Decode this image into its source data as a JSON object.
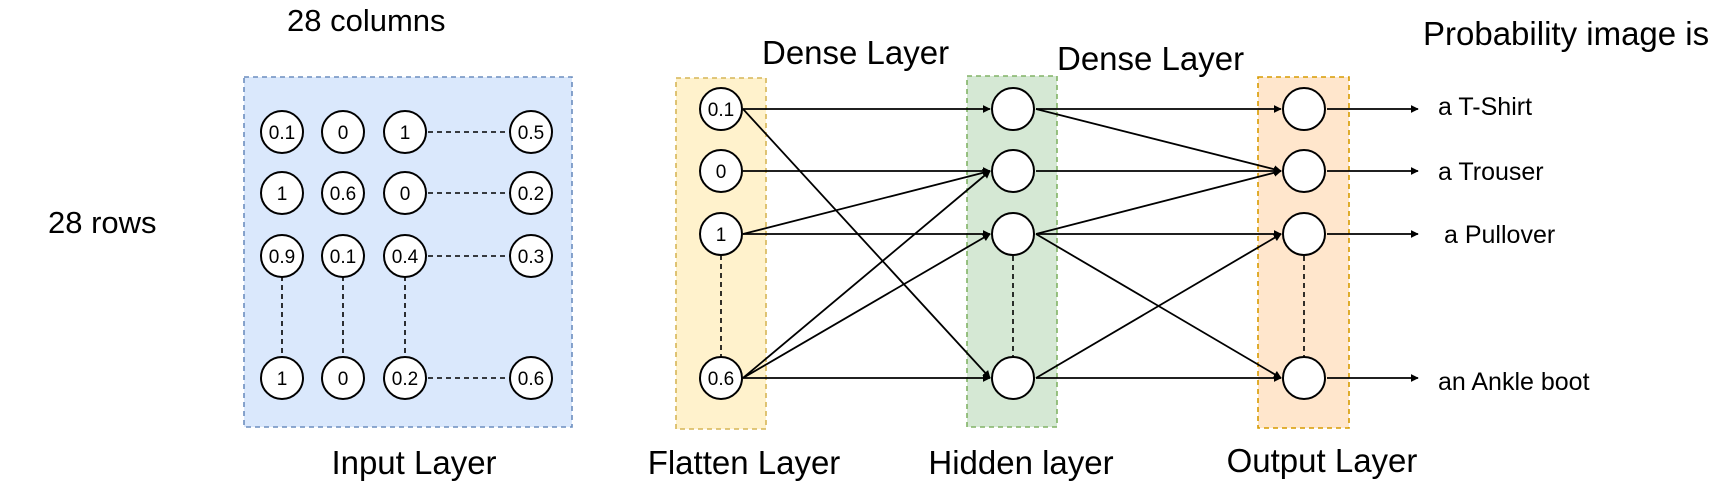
{
  "colors": {
    "input_fill": "#dae8fc",
    "input_border": "#6c8ebf",
    "flatten_fill": "#fff2cc",
    "flatten_border": "#d6b656",
    "hidden_fill": "#d5e8d4",
    "hidden_border": "#82b366",
    "output_fill": "#ffe6cc",
    "output_border": "#d79b00"
  },
  "labels": {
    "columns": "28 columns",
    "rows": "28 rows",
    "dense_layer_1": "Dense Layer",
    "dense_layer_2": "Dense Layer",
    "probability": "Probability image is"
  },
  "captions": {
    "input": "Input Layer",
    "flatten": "Flatten Layer",
    "hidden": "Hidden layer",
    "output": "Output Layer"
  },
  "input_grid": {
    "rows": [
      [
        "0.1",
        "0",
        "1",
        "0.5"
      ],
      [
        "1",
        "0.6",
        "0",
        "0.2"
      ],
      [
        "0.9",
        "0.1",
        "0.4",
        "0.3"
      ],
      [
        "1",
        "0",
        "0.2",
        "0.6"
      ]
    ]
  },
  "flatten_nodes": [
    "0.1",
    "0",
    "1",
    "0.6"
  ],
  "outputs": [
    "a T-Shirt",
    "a Trouser",
    "a Pullover",
    "an Ankle boot"
  ]
}
